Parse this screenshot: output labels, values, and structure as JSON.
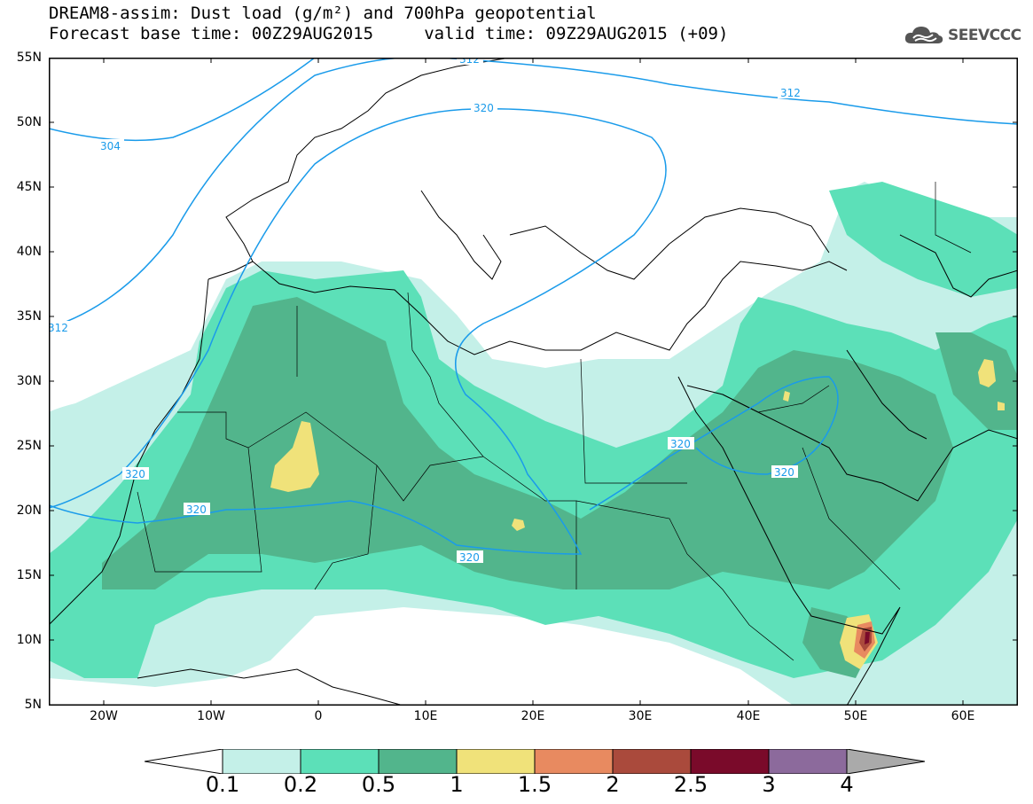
{
  "header": {
    "title_line1": "DREAM8-assim: Dust load (g/m²) and 700hPa geopotential",
    "title_line2": "Forecast base time: 00Z29AUG2015     valid time: 09Z29AUG2015 (+09)"
  },
  "logo": {
    "text": "SEEVCCC",
    "icon": "cloud-icon"
  },
  "map": {
    "lat_labels": [
      "55N",
      "50N",
      "45N",
      "40N",
      "35N",
      "30N",
      "25N",
      "20N",
      "15N",
      "10N",
      "5N"
    ],
    "lon_labels": [
      "20W",
      "10W",
      "0",
      "10E",
      "20E",
      "30E",
      "40E",
      "50E",
      "60E"
    ],
    "contour_labels": [
      "304",
      "312",
      "312",
      "312",
      "320",
      "320",
      "320",
      "320",
      "320",
      "320"
    ]
  },
  "colorbar": {
    "levels": [
      "0.1",
      "0.2",
      "0.5",
      "1",
      "1.5",
      "2",
      "2.5",
      "3",
      "4"
    ],
    "colors": [
      "#c4f0e8",
      "#5ce0b8",
      "#52b58c",
      "#f0e27a",
      "#e88a60",
      "#aa4a3c",
      "#7a0a2a",
      "#8c6a9c",
      "#aaaaaa"
    ]
  }
}
